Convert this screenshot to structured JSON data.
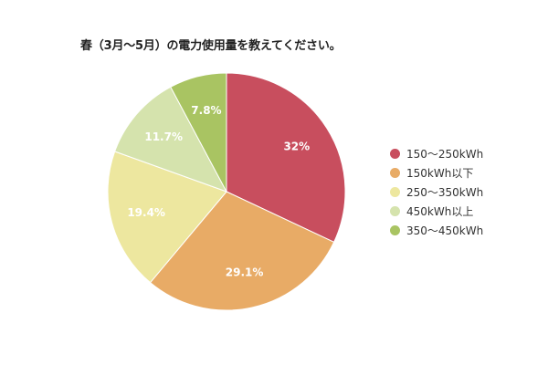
{
  "chart_data": {
    "type": "pie",
    "title": "春（3月～5月）の電力使用量を教えてください。",
    "slices": [
      {
        "label": "150～250kWh",
        "value": 32,
        "value_label": "32%",
        "color": "#c84e5e"
      },
      {
        "label": "150kWh以下",
        "value": 29.1,
        "value_label": "29.1%",
        "color": "#e8ab66"
      },
      {
        "label": "250～350kWh",
        "value": 19.4,
        "value_label": "19.4%",
        "color": "#ede79f"
      },
      {
        "label": "450kWh以上",
        "value": 11.7,
        "value_label": "11.7%",
        "color": "#d5e3ad"
      },
      {
        "label": "350～450kWh",
        "value": 7.8,
        "value_label": "7.8%",
        "color": "#a9c462"
      }
    ],
    "legend_position": "right"
  }
}
